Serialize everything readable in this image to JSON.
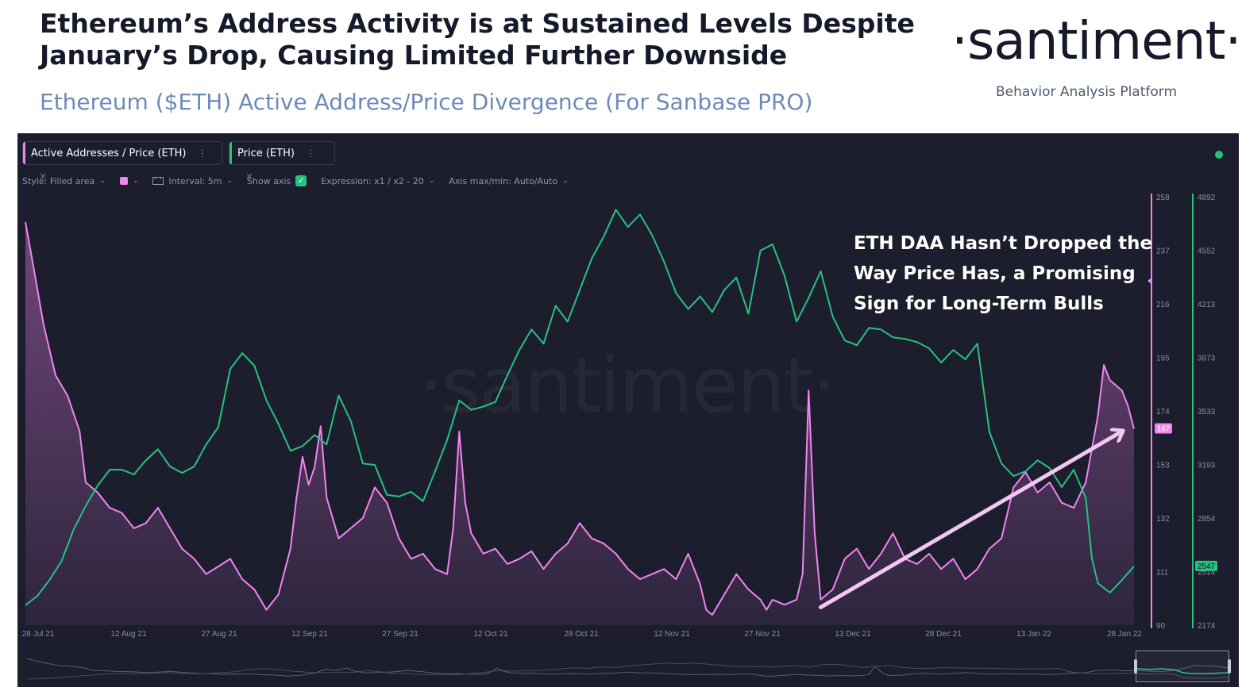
{
  "header": {
    "title": "Ethereum’s Address Activity is at Sustained Levels Despite January’s Drop, Causing Limited Further Downside",
    "subtitle": "Ethereum ($ETH) Active Address/Price Divergence (For Sanbase PRO)",
    "brand": "·santiment·",
    "brand_tagline": "Behavior Analysis Platform"
  },
  "tabs": [
    {
      "label": "Active Addresses / Price (ETH)",
      "color": "#f185f0",
      "more": "⋮",
      "close": "×"
    },
    {
      "label": "Price (ETH)",
      "color": "#26c281",
      "more": "⋮",
      "close": "×"
    }
  ],
  "toolbar": {
    "style": "Style: Filled area",
    "interval": "Interval: 5m",
    "show_axis": "Show axis",
    "expression": "Expression: x1 / x2 - 20",
    "axis_maxmin": "Axis max/min: Auto/Auto",
    "chevron": "⌄",
    "check": "✓",
    "interval_icon": "calendar-icon"
  },
  "watermark": "·santiment·",
  "annotation": "ETH DAA Hasn’t Dropped the Way Price Has, a Promising Sign for Long-Term Bulls",
  "colors": {
    "ratio": "#f185f0",
    "price": "#26c281",
    "panel_bg": "#1c1d2d",
    "arrow": "#f3c6f3"
  },
  "chart_data": {
    "type": "line",
    "title": "Ethereum ($ETH) Active Address/Price Divergence",
    "x_ticks": [
      "28 Jul 21",
      "12 Aug 21",
      "27 Aug 21",
      "12 Sep 21",
      "27 Sep 21",
      "12 Oct 21",
      "28 Oct 21",
      "12 Nov 21",
      "27 Nov 21",
      "13 Dec 21",
      "28 Dec 21",
      "13 Jan 22",
      "28 Jan 22"
    ],
    "x_range": [
      0,
      184
    ],
    "y_left": {
      "label": "Active Addresses / Price (ETH)",
      "ticks": [
        258,
        237,
        216,
        195,
        174,
        153,
        132,
        111,
        90
      ],
      "range": [
        90,
        258
      ],
      "current": "167"
    },
    "y_right": {
      "label": "Price (ETH)",
      "ticks": [
        4892,
        4552,
        4213,
        3873,
        3533,
        3193,
        2854,
        2514,
        2174
      ],
      "range": [
        2174,
        4892
      ],
      "current": "2547"
    },
    "series": [
      {
        "name": "Active Addresses / Price (ETH)",
        "style": "filled area",
        "axis": "left",
        "points": [
          [
            0,
            248
          ],
          [
            1,
            235
          ],
          [
            3,
            208
          ],
          [
            5,
            188
          ],
          [
            7,
            180
          ],
          [
            9,
            166
          ],
          [
            10,
            146
          ],
          [
            12,
            142
          ],
          [
            14,
            136
          ],
          [
            16,
            134
          ],
          [
            18,
            128
          ],
          [
            20,
            130
          ],
          [
            22,
            136
          ],
          [
            24,
            128
          ],
          [
            26,
            120
          ],
          [
            28,
            116
          ],
          [
            30,
            110
          ],
          [
            32,
            113
          ],
          [
            34,
            116
          ],
          [
            36,
            108
          ],
          [
            38,
            104
          ],
          [
            40,
            96
          ],
          [
            42,
            102
          ],
          [
            44,
            120
          ],
          [
            45,
            140
          ],
          [
            46,
            156
          ],
          [
            47,
            145
          ],
          [
            48,
            152
          ],
          [
            49,
            168
          ],
          [
            50,
            140
          ],
          [
            52,
            124
          ],
          [
            54,
            128
          ],
          [
            56,
            132
          ],
          [
            58,
            144
          ],
          [
            60,
            138
          ],
          [
            62,
            124
          ],
          [
            64,
            116
          ],
          [
            66,
            118
          ],
          [
            68,
            112
          ],
          [
            70,
            110
          ],
          [
            71,
            128
          ],
          [
            72,
            166
          ],
          [
            73,
            138
          ],
          [
            74,
            126
          ],
          [
            76,
            118
          ],
          [
            78,
            120
          ],
          [
            80,
            114
          ],
          [
            82,
            116
          ],
          [
            84,
            119
          ],
          [
            86,
            112
          ],
          [
            88,
            118
          ],
          [
            90,
            122
          ],
          [
            92,
            130
          ],
          [
            94,
            124
          ],
          [
            96,
            122
          ],
          [
            98,
            118
          ],
          [
            100,
            112
          ],
          [
            102,
            108
          ],
          [
            104,
            110
          ],
          [
            106,
            112
          ],
          [
            108,
            108
          ],
          [
            110,
            118
          ],
          [
            112,
            106
          ],
          [
            113,
            96
          ],
          [
            114,
            94
          ],
          [
            116,
            102
          ],
          [
            118,
            110
          ],
          [
            120,
            104
          ],
          [
            122,
            100
          ],
          [
            123,
            96
          ],
          [
            124,
            100
          ],
          [
            126,
            98
          ],
          [
            128,
            100
          ],
          [
            129,
            110
          ],
          [
            130,
            182
          ],
          [
            131,
            126
          ],
          [
            132,
            100
          ],
          [
            134,
            104
          ],
          [
            136,
            116
          ],
          [
            138,
            120
          ],
          [
            140,
            112
          ],
          [
            142,
            118
          ],
          [
            144,
            126
          ],
          [
            146,
            116
          ],
          [
            148,
            114
          ],
          [
            150,
            118
          ],
          [
            152,
            112
          ],
          [
            154,
            116
          ],
          [
            156,
            108
          ],
          [
            158,
            112
          ],
          [
            160,
            120
          ],
          [
            162,
            124
          ],
          [
            164,
            144
          ],
          [
            166,
            150
          ],
          [
            168,
            142
          ],
          [
            170,
            146
          ],
          [
            172,
            138
          ],
          [
            174,
            136
          ],
          [
            176,
            146
          ],
          [
            178,
            172
          ],
          [
            179,
            192
          ],
          [
            180,
            186
          ],
          [
            182,
            182
          ],
          [
            183,
            176
          ],
          [
            184,
            167
          ]
        ]
      },
      {
        "name": "Price (ETH)",
        "style": "line",
        "axis": "right",
        "points": [
          [
            0,
            2300
          ],
          [
            2,
            2360
          ],
          [
            4,
            2460
          ],
          [
            6,
            2580
          ],
          [
            8,
            2780
          ],
          [
            10,
            2930
          ],
          [
            12,
            3060
          ],
          [
            14,
            3160
          ],
          [
            16,
            3160
          ],
          [
            18,
            3130
          ],
          [
            20,
            3220
          ],
          [
            22,
            3290
          ],
          [
            24,
            3180
          ],
          [
            26,
            3140
          ],
          [
            28,
            3180
          ],
          [
            30,
            3320
          ],
          [
            32,
            3430
          ],
          [
            34,
            3800
          ],
          [
            36,
            3900
          ],
          [
            38,
            3820
          ],
          [
            40,
            3600
          ],
          [
            42,
            3450
          ],
          [
            44,
            3280
          ],
          [
            46,
            3310
          ],
          [
            48,
            3380
          ],
          [
            50,
            3320
          ],
          [
            52,
            3630
          ],
          [
            54,
            3470
          ],
          [
            56,
            3200
          ],
          [
            58,
            3190
          ],
          [
            60,
            3000
          ],
          [
            62,
            2990
          ],
          [
            64,
            3020
          ],
          [
            66,
            2960
          ],
          [
            68,
            3150
          ],
          [
            70,
            3350
          ],
          [
            72,
            3600
          ],
          [
            74,
            3540
          ],
          [
            76,
            3560
          ],
          [
            78,
            3590
          ],
          [
            80,
            3760
          ],
          [
            82,
            3920
          ],
          [
            84,
            4050
          ],
          [
            86,
            3960
          ],
          [
            88,
            4200
          ],
          [
            90,
            4100
          ],
          [
            92,
            4300
          ],
          [
            94,
            4500
          ],
          [
            96,
            4640
          ],
          [
            98,
            4810
          ],
          [
            100,
            4700
          ],
          [
            102,
            4780
          ],
          [
            104,
            4650
          ],
          [
            106,
            4480
          ],
          [
            108,
            4280
          ],
          [
            110,
            4180
          ],
          [
            112,
            4260
          ],
          [
            114,
            4160
          ],
          [
            116,
            4300
          ],
          [
            118,
            4380
          ],
          [
            120,
            4150
          ],
          [
            122,
            4550
          ],
          [
            124,
            4590
          ],
          [
            126,
            4390
          ],
          [
            128,
            4100
          ],
          [
            130,
            4250
          ],
          [
            132,
            4420
          ],
          [
            134,
            4130
          ],
          [
            136,
            3980
          ],
          [
            138,
            3950
          ],
          [
            140,
            4060
          ],
          [
            142,
            4050
          ],
          [
            144,
            4000
          ],
          [
            146,
            3990
          ],
          [
            148,
            3970
          ],
          [
            150,
            3930
          ],
          [
            152,
            3840
          ],
          [
            154,
            3920
          ],
          [
            156,
            3860
          ],
          [
            158,
            3960
          ],
          [
            160,
            3400
          ],
          [
            162,
            3200
          ],
          [
            164,
            3120
          ],
          [
            166,
            3150
          ],
          [
            168,
            3220
          ],
          [
            170,
            3170
          ],
          [
            172,
            3050
          ],
          [
            174,
            3160
          ],
          [
            176,
            2980
          ],
          [
            177,
            2600
          ],
          [
            178,
            2440
          ],
          [
            180,
            2380
          ],
          [
            182,
            2460
          ],
          [
            184,
            2547
          ]
        ]
      }
    ]
  }
}
